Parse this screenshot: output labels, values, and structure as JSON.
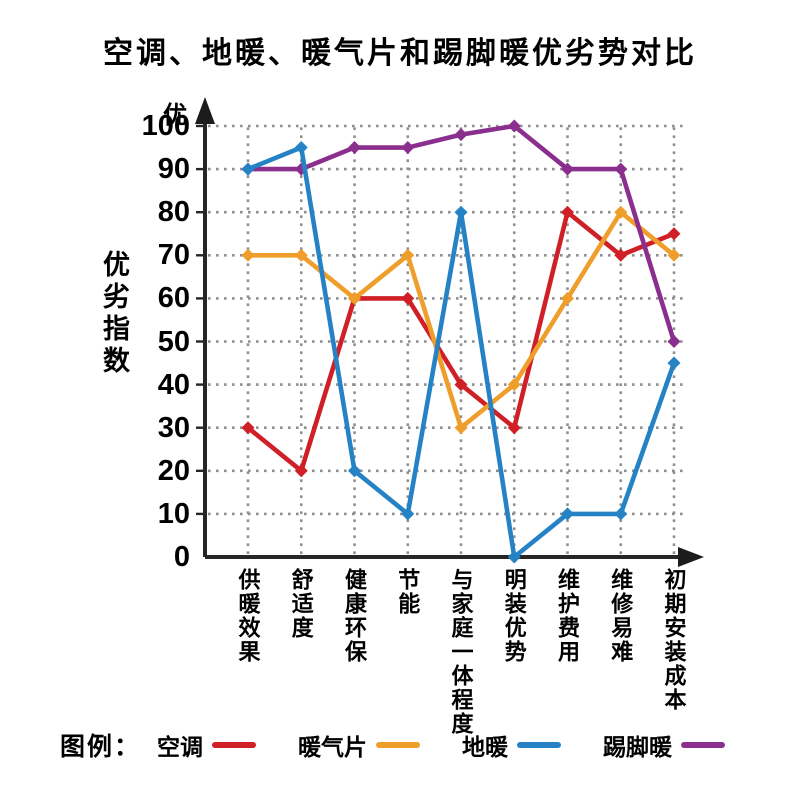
{
  "title": "空调、地暖、暖气片和踢脚暖优劣势对比",
  "y_axis": {
    "title": "优劣指数",
    "top_label": "优"
  },
  "legend": {
    "label": "图例："
  },
  "colors": {
    "air_conditioner_red": "#d02027",
    "radiator_orange": "#f09e2b",
    "floor_heating_blue": "#2583c5",
    "baseboard_purple": "#8b2f8f",
    "axis": "#262626",
    "grid": "#8f8f8f"
  },
  "chart_data": {
    "type": "line",
    "title": "空调、地暖、暖气片和踢脚暖优劣势对比",
    "xlabel": "",
    "ylabel": "优劣指数",
    "ylim": [
      0,
      100
    ],
    "yticks": [
      0,
      10,
      20,
      30,
      40,
      50,
      60,
      70,
      80,
      90,
      100
    ],
    "grid": true,
    "legend_position": "bottom",
    "categories": [
      "供暖效果",
      "舒适度",
      "健康环保",
      "节能",
      "与家庭一体程度",
      "明装优势",
      "维护费用",
      "维修易难",
      "初期安装成本"
    ],
    "series": [
      {
        "name": "空调",
        "color": "#d02027",
        "values": [
          30,
          20,
          60,
          60,
          40,
          30,
          80,
          70,
          75
        ]
      },
      {
        "name": "暖气片",
        "color": "#f09e2b",
        "values": [
          70,
          70,
          60,
          70,
          30,
          40,
          60,
          80,
          70
        ]
      },
      {
        "name": "地暖",
        "color": "#2583c5",
        "values": [
          90,
          95,
          20,
          10,
          80,
          0,
          10,
          10,
          45
        ]
      },
      {
        "name": "踢脚暖",
        "color": "#8b2f8f",
        "values": [
          90,
          90,
          95,
          95,
          98,
          100,
          90,
          90,
          50
        ]
      }
    ]
  }
}
